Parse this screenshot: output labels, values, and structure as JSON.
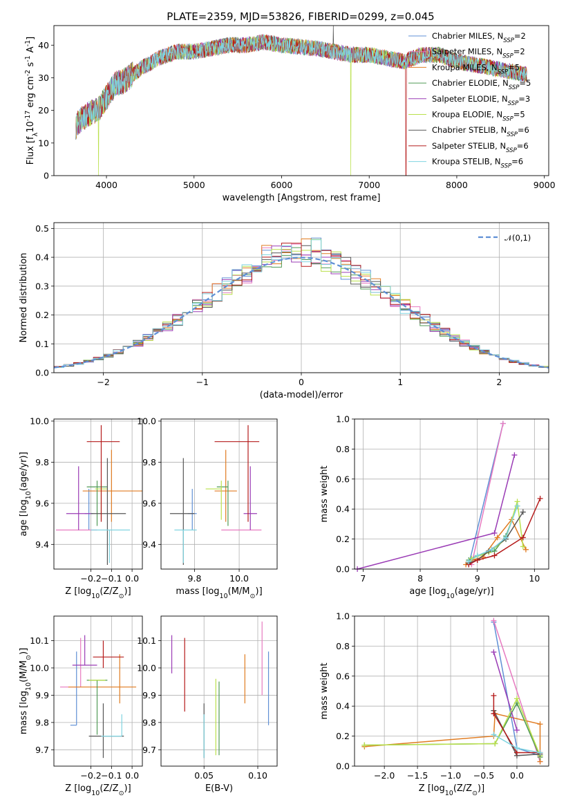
{
  "figure_title": "PLATE=2359, MJD=53826, FIBERID=0299, z=0.045",
  "series": [
    {
      "name": "Chabrier MILES, N$_{SSP}$=2",
      "label_main": "Chabrier MILES, N",
      "label_sub": "SSP",
      "label_tail": "=2",
      "color": "#5f8fd5"
    },
    {
      "name": "Salpeter MILES, N$_{SSP}$=2",
      "label_main": "Salpeter MILES, N",
      "label_sub": "SSP",
      "label_tail": "=2",
      "color": "#e77ac0"
    },
    {
      "name": "Kroupa MILES, N$_{SSP}$=5",
      "label_main": "Kroupa MILES, N",
      "label_sub": "SSP",
      "label_tail": "=5",
      "color": "#e07b20"
    },
    {
      "name": "Chabrier ELODIE, N$_{SSP}$=5",
      "label_main": "Chabrier ELODIE, N",
      "label_sub": "SSP",
      "label_tail": "=5",
      "color": "#4f9a55"
    },
    {
      "name": "Salpeter ELODIE, N$_{SSP}$=3",
      "label_main": "Salpeter ELODIE, N",
      "label_sub": "SSP",
      "label_tail": "=3",
      "color": "#9a3bb5"
    },
    {
      "name": "Kroupa ELODIE, N$_{SSP}$=5",
      "label_main": "Kroupa ELODIE, N",
      "label_sub": "SSP",
      "label_tail": "=5",
      "color": "#b9e04a"
    },
    {
      "name": "Chabrier STELIB, N$_{SSP}$=6",
      "label_main": "Chabrier STELIB, N",
      "label_sub": "SSP",
      "label_tail": "=6",
      "color": "#555555"
    },
    {
      "name": "Salpeter STELIB, N$_{SSP}$=6",
      "label_main": "Salpeter STELIB, N",
      "label_sub": "SSP",
      "label_tail": "=6",
      "color": "#b51a1a"
    },
    {
      "name": "Kroupa STELIB, N$_{SSP}$=6",
      "label_main": "Kroupa STELIB, N",
      "label_sub": "SSP",
      "label_tail": "=6",
      "color": "#7fd4e0"
    }
  ],
  "chart_data": [
    {
      "id": "spectrum",
      "type": "line",
      "xlabel": "wavelength [Angstrom, rest frame]",
      "ylabel": "Flux [f$_\\lambda$10$^{-17}$ erg cm$^{-2}$ s$^{-1}$ A$^{-1}$]",
      "xlim": [
        3400,
        9050
      ],
      "ylim": [
        0,
        46
      ],
      "xticks": [
        4000,
        5000,
        6000,
        7000,
        8000,
        9000
      ],
      "yticks": [
        0,
        10,
        20,
        30,
        40
      ],
      "grid": false,
      "legend": "top-right",
      "continuum": {
        "x": [
          3650,
          3700,
          3800,
          3900,
          4000,
          4100,
          4200,
          4400,
          4600,
          4800,
          5000,
          5200,
          5400,
          5600,
          5800,
          6000,
          6200,
          6400,
          6600,
          6800,
          7000,
          7200,
          7400,
          7600,
          7800,
          8000,
          8200,
          8400,
          8600,
          8800
        ],
        "y": [
          15,
          17,
          19,
          20,
          24,
          28,
          29,
          33,
          36,
          38,
          38,
          39,
          40,
          40,
          41,
          40,
          39.5,
          39,
          38,
          37,
          37,
          36,
          35,
          37,
          37,
          35,
          34,
          33,
          32,
          31
        ]
      },
      "noise_amplitude": 2.5,
      "features": [
        {
          "series": 5,
          "x": 3910,
          "y": 0
        },
        {
          "series": 5,
          "x": 6790,
          "y": 0
        },
        {
          "series": 7,
          "x": 7420,
          "y": 0
        },
        {
          "series": 6,
          "x": 6590,
          "y": 46
        }
      ]
    },
    {
      "id": "residual-histogram",
      "type": "histogram",
      "xlabel": "(data-model)/error",
      "ylabel": "Normed distribution",
      "xlim": [
        -2.5,
        2.5
      ],
      "ylim": [
        0,
        0.52
      ],
      "xticks": [
        -2,
        -1,
        0,
        1,
        2
      ],
      "yticks": [
        0.0,
        0.1,
        0.2,
        0.3,
        0.4,
        0.5
      ],
      "grid": true,
      "legend": "top-right",
      "bin_width": 0.1,
      "reference": {
        "name": "$\\mathcal{N}(0,1)$",
        "label_text": "𝒩(0,1)",
        "color": "#5f8fd5",
        "mean": 0,
        "sigma": 1
      }
    },
    {
      "id": "age-vs-Z",
      "type": "errorbar",
      "xlabel": "Z [log$_{10}$(Z/Z$_\\odot$)]",
      "ylabel": "age  [log$_{10}$(age/yr)]",
      "xlim": [
        -0.38,
        0.05
      ],
      "ylim": [
        9.28,
        10.01
      ],
      "xticks": [
        -0.2,
        -0.1,
        0.0
      ],
      "yticks": [
        9.4,
        9.6,
        9.8,
        10.0
      ],
      "grid": true,
      "points": [
        {
          "s": 0,
          "x": -0.21,
          "xerr": [
            0.02,
            0.02
          ],
          "y": 9.55,
          "yerr": [
            0.08,
            0.12
          ]
        },
        {
          "s": 1,
          "x": -0.27,
          "xerr": [
            0.1,
            0.1
          ],
          "y": 9.47,
          "yerr": [
            0.0,
            0.0
          ]
        },
        {
          "s": 2,
          "x": -0.1,
          "xerr": [
            0.14,
            0.15
          ],
          "y": 9.66,
          "yerr": [
            0.15,
            0.2
          ]
        },
        {
          "s": 3,
          "x": -0.17,
          "xerr": [
            0.05,
            0.05
          ],
          "y": 9.68,
          "yerr": [
            0.19,
            0.03
          ]
        },
        {
          "s": 4,
          "x": -0.26,
          "xerr": [
            0.06,
            0.06
          ],
          "y": 9.55,
          "yerr": [
            0.08,
            0.23
          ]
        },
        {
          "s": 5,
          "x": -0.15,
          "xerr": [
            0.03,
            0.03
          ],
          "y": 9.67,
          "yerr": [
            0.15,
            0.04
          ]
        },
        {
          "s": 6,
          "x": -0.12,
          "xerr": [
            0.08,
            0.09
          ],
          "y": 9.55,
          "yerr": [
            0.25,
            0.27
          ]
        },
        {
          "s": 7,
          "x": -0.15,
          "xerr": [
            0.07,
            0.09
          ],
          "y": 9.9,
          "yerr": [
            0.39,
            0.08
          ]
        },
        {
          "s": 8,
          "x": -0.11,
          "xerr": [
            0.09,
            0.1
          ],
          "y": 9.47,
          "yerr": [
            0.16,
            0.0
          ]
        }
      ]
    },
    {
      "id": "age-vs-mass",
      "type": "errorbar",
      "xlabel": "mass [log$_{10}$(M/M$_\\odot$)]",
      "ylabel": "",
      "xlim": [
        9.65,
        10.17
      ],
      "ylim": [
        9.28,
        10.01
      ],
      "xticks": [
        9.8,
        10.0
      ],
      "yticks": [
        9.4,
        9.6,
        9.8,
        10.0
      ],
      "grid": true,
      "points": [
        {
          "s": 0,
          "x": 9.79,
          "xerr": [
            0.02,
            0.02
          ],
          "y": 9.55,
          "yerr": [
            0.08,
            0.12
          ]
        },
        {
          "s": 1,
          "x": 10.0,
          "xerr": [
            0.08,
            0.1
          ],
          "y": 9.47,
          "yerr": [
            0.0,
            0.0
          ]
        },
        {
          "s": 2,
          "x": 9.94,
          "xerr": [
            0.05,
            0.05
          ],
          "y": 9.66,
          "yerr": [
            0.15,
            0.2
          ]
        },
        {
          "s": 3,
          "x": 9.95,
          "xerr": [
            0.05,
            0.0
          ],
          "y": 9.68,
          "yerr": [
            0.19,
            0.03
          ]
        },
        {
          "s": 4,
          "x": 10.05,
          "xerr": [
            0.03,
            0.03
          ],
          "y": 9.55,
          "yerr": [
            0.08,
            0.23
          ]
        },
        {
          "s": 5,
          "x": 9.92,
          "xerr": [
            0.07,
            0.0
          ],
          "y": 9.67,
          "yerr": [
            0.15,
            0.04
          ]
        },
        {
          "s": 6,
          "x": 9.75,
          "xerr": [
            0.06,
            0.05
          ],
          "y": 9.55,
          "yerr": [
            0.25,
            0.27
          ]
        },
        {
          "s": 7,
          "x": 10.04,
          "xerr": [
            0.15,
            0.05
          ],
          "y": 9.9,
          "yerr": [
            0.39,
            0.08
          ]
        },
        {
          "s": 8,
          "x": 9.75,
          "xerr": [
            0.04,
            0.06
          ],
          "y": 9.47,
          "yerr": [
            0.16,
            0.0
          ]
        }
      ]
    },
    {
      "id": "mass-weight-vs-age",
      "type": "line",
      "xlabel": "age  [log$_{10}$(age/yr)]",
      "ylabel": "mass weight",
      "xlim": [
        6.85,
        10.25
      ],
      "ylim": [
        0,
        1.0
      ],
      "xticks": [
        7,
        8,
        9,
        10
      ],
      "yticks": [
        0.0,
        0.2,
        0.4,
        0.6,
        0.8,
        1.0
      ],
      "grid": true,
      "lines": [
        {
          "s": 0,
          "x": [
            8.85,
            9.45
          ],
          "y": [
            0.03,
            0.97
          ]
        },
        {
          "s": 1,
          "x": [
            8.9,
            9.45
          ],
          "y": [
            0.03,
            0.97
          ]
        },
        {
          "s": 2,
          "x": [
            8.8,
            8.9,
            9.1,
            9.35,
            9.6,
            9.85
          ],
          "y": [
            0.03,
            0.06,
            0.08,
            0.21,
            0.33,
            0.13
          ]
        },
        {
          "s": 3,
          "x": [
            8.85,
            9.0,
            9.3,
            9.5,
            9.7
          ],
          "y": [
            0.06,
            0.09,
            0.12,
            0.22,
            0.42
          ]
        },
        {
          "s": 4,
          "x": [
            6.9,
            9.3,
            9.65
          ],
          "y": [
            0.0,
            0.24,
            0.76
          ]
        },
        {
          "s": 5,
          "x": [
            8.9,
            9.2,
            9.5,
            9.7,
            9.8
          ],
          "y": [
            0.07,
            0.11,
            0.2,
            0.45,
            0.15
          ]
        },
        {
          "s": 6,
          "x": [
            8.85,
            9.0,
            9.2,
            9.5,
            9.8
          ],
          "y": [
            0.04,
            0.06,
            0.12,
            0.2,
            0.38
          ]
        },
        {
          "s": 7,
          "x": [
            8.85,
            9.0,
            9.3,
            9.8,
            10.1
          ],
          "y": [
            0.03,
            0.06,
            0.09,
            0.21,
            0.47
          ]
        },
        {
          "s": 8,
          "x": [
            8.85,
            9.0,
            9.25,
            9.5,
            9.7
          ],
          "y": [
            0.05,
            0.09,
            0.13,
            0.21,
            0.42
          ]
        }
      ]
    },
    {
      "id": "mass-vs-Z",
      "type": "errorbar",
      "xlabel": "Z [log$_{10}$(Z/Z$_\\odot$)]",
      "ylabel": "mass [log$_{10}$(M/M$_\\odot$)]",
      "xlim": [
        -0.38,
        0.05
      ],
      "ylim": [
        9.64,
        10.19
      ],
      "xticks": [
        -0.2,
        -0.1,
        0.0
      ],
      "yticks": [
        9.7,
        9.8,
        9.9,
        10.0,
        10.1
      ],
      "grid": true,
      "points": [
        {
          "s": 0,
          "x": -0.27,
          "xerr": [
            0.03,
            0.0
          ],
          "y": 9.79,
          "yerr": [
            0.0,
            0.27
          ]
        },
        {
          "s": 1,
          "x": -0.25,
          "xerr": [
            0.1,
            0.0
          ],
          "y": 9.93,
          "yerr": [
            0.0,
            0.18
          ]
        },
        {
          "s": 2,
          "x": -0.06,
          "xerr": [
            0.25,
            0.08
          ],
          "y": 9.93,
          "yerr": [
            0.06,
            0.12
          ]
        },
        {
          "s": 3,
          "x": -0.17,
          "xerr": [
            0.05,
            0.05
          ],
          "y": 9.955,
          "yerr": [
            0.2,
            0.0
          ]
        },
        {
          "s": 4,
          "x": -0.23,
          "xerr": [
            0.06,
            0.06
          ],
          "y": 10.01,
          "yerr": [
            0.0,
            0.11
          ]
        },
        {
          "s": 5,
          "x": -0.17,
          "xerr": [
            0.04,
            0.04
          ],
          "y": 9.955,
          "yerr": [
            0.0,
            0.0
          ]
        },
        {
          "s": 6,
          "x": -0.14,
          "xerr": [
            0.07,
            0.1
          ],
          "y": 9.75,
          "yerr": [
            0.08,
            0.12
          ]
        },
        {
          "s": 7,
          "x": -0.14,
          "xerr": [
            0.05,
            0.1
          ],
          "y": 10.04,
          "yerr": [
            0.04,
            0.06
          ]
        },
        {
          "s": 8,
          "x": -0.05,
          "xerr": [
            0.1,
            0.0
          ],
          "y": 9.75,
          "yerr": [
            0.0,
            0.08
          ]
        }
      ]
    },
    {
      "id": "mass-vs-ebv",
      "type": "errorbar",
      "xlabel": "E(B-V)",
      "ylabel": "",
      "xlim": [
        0.01,
        0.118
      ],
      "ylim": [
        9.64,
        10.19
      ],
      "xticks": [
        0.05,
        0.1
      ],
      "yticks": [
        9.7,
        9.8,
        9.9,
        10.0,
        10.1
      ],
      "grid": true,
      "points": [
        {
          "s": 0,
          "x": 0.11,
          "xerr": [
            0,
            0
          ],
          "y": 9.93,
          "yerr": [
            0.14,
            0.13
          ]
        },
        {
          "s": 1,
          "x": 0.104,
          "xerr": [
            0,
            0
          ],
          "y": 10.0,
          "yerr": [
            0.1,
            0.17
          ]
        },
        {
          "s": 2,
          "x": 0.088,
          "xerr": [
            0,
            0
          ],
          "y": 9.93,
          "yerr": [
            0.06,
            0.12
          ]
        },
        {
          "s": 3,
          "x": 0.064,
          "xerr": [
            0,
            0
          ],
          "y": 9.88,
          "yerr": [
            0.2,
            0.07
          ]
        },
        {
          "s": 4,
          "x": 0.02,
          "xerr": [
            0,
            0
          ],
          "y": 10.05,
          "yerr": [
            0.07,
            0.07
          ]
        },
        {
          "s": 5,
          "x": 0.061,
          "xerr": [
            0,
            0
          ],
          "y": 9.88,
          "yerr": [
            0.2,
            0.08
          ]
        },
        {
          "s": 6,
          "x": 0.05,
          "xerr": [
            0,
            0
          ],
          "y": 9.77,
          "yerr": [
            0.1,
            0.1
          ]
        },
        {
          "s": 7,
          "x": 0.032,
          "xerr": [
            0,
            0
          ],
          "y": 9.98,
          "yerr": [
            0.14,
            0.13
          ]
        },
        {
          "s": 8,
          "x": 0.05,
          "xerr": [
            0,
            0
          ],
          "y": 9.75,
          "yerr": [
            0.08,
            0.08
          ]
        }
      ]
    },
    {
      "id": "mass-weight-vs-Z",
      "type": "line",
      "xlabel": "Z [log$_{10}$(Z/Z$_\\odot$)]",
      "ylabel": "mass weight",
      "xlim": [
        -2.45,
        0.48
      ],
      "ylim": [
        0,
        1.0
      ],
      "xticks": [
        -2.0,
        -1.5,
        -1.0,
        -0.5,
        0.0
      ],
      "yticks": [
        0.0,
        0.2,
        0.4,
        0.6,
        0.8,
        1.0
      ],
      "grid": true,
      "lines": [
        {
          "s": 0,
          "x": [
            -0.35,
            0.0,
            0.35
          ],
          "y": [
            0.96,
            0.12,
            0.07
          ]
        },
        {
          "s": 1,
          "x": [
            -0.35,
            0.35
          ],
          "y": [
            0.97,
            0.03
          ]
        },
        {
          "s": 2,
          "x": [
            -2.3,
            -0.35,
            -0.33,
            0.35,
            0.35
          ],
          "y": [
            0.13,
            0.2,
            0.35,
            0.28,
            0.03
          ]
        },
        {
          "s": 3,
          "x": [
            -2.3,
            -0.33,
            0.0,
            0.35
          ],
          "y": [
            0.14,
            0.15,
            0.42,
            0.06
          ]
        },
        {
          "s": 4,
          "x": [
            -0.35,
            0.0
          ],
          "y": [
            0.76,
            0.24
          ]
        },
        {
          "s": 5,
          "x": [
            -2.3,
            -0.33,
            0.0,
            0.35
          ],
          "y": [
            0.14,
            0.15,
            0.45,
            0.07
          ]
        },
        {
          "s": 6,
          "x": [
            -0.35,
            0.0,
            0.35
          ],
          "y": [
            0.37,
            0.07,
            0.08
          ]
        },
        {
          "s": 7,
          "x": [
            -0.35,
            -0.35,
            0.0,
            0.35
          ],
          "y": [
            0.47,
            0.35,
            0.09,
            0.09
          ]
        },
        {
          "s": 8,
          "x": [
            -0.35,
            0.0,
            0.35
          ],
          "y": [
            0.21,
            0.12,
            0.09
          ]
        }
      ]
    }
  ]
}
